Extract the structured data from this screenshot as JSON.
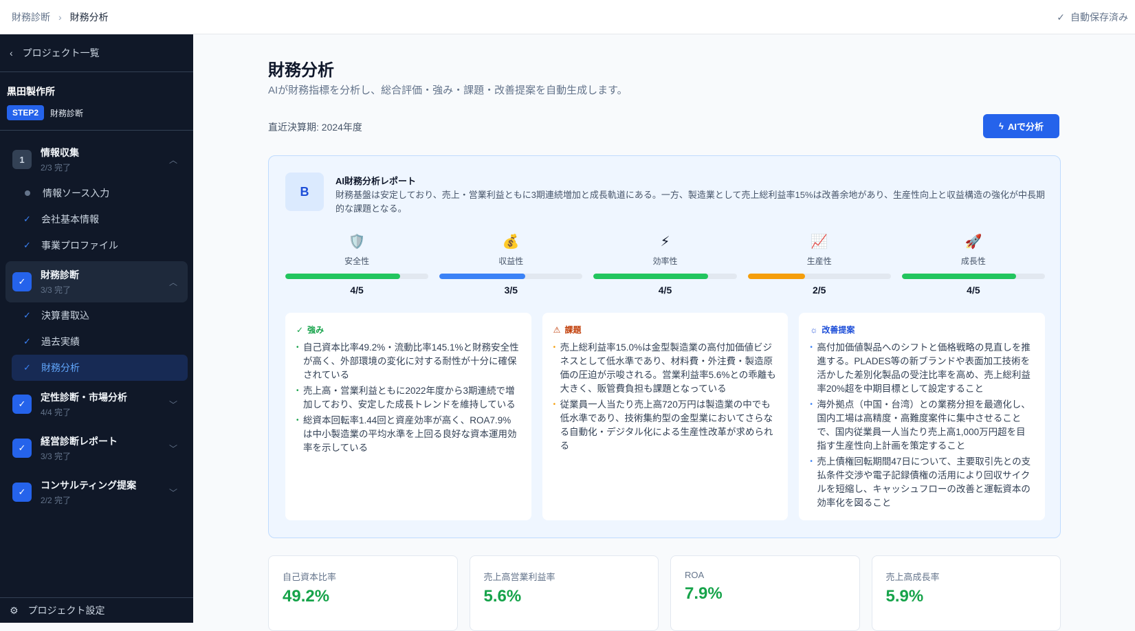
{
  "header": {
    "breadcrumb": [
      "財務診断",
      "財務分析"
    ],
    "autosave": "自動保存済み"
  },
  "sidebar": {
    "back": "プロジェクト一覧",
    "project_name": "黒田製作所",
    "step_badge": "STEP2",
    "step_label": "財務診断",
    "groups": [
      {
        "num": "1",
        "title": "情報収集",
        "progress": "2/3 完了",
        "state": "in-progress",
        "expanded": true,
        "items": [
          {
            "label": "情報ソース入力",
            "done": false
          },
          {
            "label": "会社基本情報",
            "done": true
          },
          {
            "label": "事業プロファイル",
            "done": true
          }
        ]
      },
      {
        "title": "財務診断",
        "progress": "3/3 完了",
        "state": "done",
        "expanded": true,
        "items": [
          {
            "label": "決算書取込",
            "done": true
          },
          {
            "label": "過去実績",
            "done": true
          },
          {
            "label": "財務分析",
            "done": true,
            "current": true
          }
        ]
      },
      {
        "title": "定性診断・市場分析",
        "progress": "4/4 完了",
        "state": "done",
        "expanded": false
      },
      {
        "title": "経営診断レポート",
        "progress": "3/3 完了",
        "state": "done",
        "expanded": false
      },
      {
        "title": "コンサルティング提案",
        "progress": "2/2 完了",
        "state": "done",
        "expanded": false
      }
    ],
    "settings": "プロジェクト設定"
  },
  "main": {
    "title": "財務分析",
    "description": "AIが財務指標を分析し、総合評価・強み・課題・改善提案を自動生成します。",
    "period": "直近決算期: 2024年度",
    "ai_button": "AIで分析",
    "report": {
      "grade": "B",
      "title": "AI財務分析レポート",
      "summary": "財務基盤は安定しており、売上・営業利益ともに3期連続増加と成長軌道にある。一方、製造業として売上総利益率15%は改善余地があり、生産性向上と収益構造の強化が中長期的な課題となる。",
      "scores": [
        {
          "icon": "🛡️",
          "label": "安全性",
          "value": "4/5",
          "fraction": 0.8,
          "color": "#22c55e"
        },
        {
          "icon": "💰",
          "label": "収益性",
          "value": "3/5",
          "fraction": 0.6,
          "color": "#3b82f6"
        },
        {
          "icon": "⚡",
          "label": "効率性",
          "value": "4/5",
          "fraction": 0.8,
          "color": "#22c55e"
        },
        {
          "icon": "📈",
          "label": "生産性",
          "value": "2/5",
          "fraction": 0.4,
          "color": "#f59e0b"
        },
        {
          "icon": "🚀",
          "label": "成長性",
          "value": "4/5",
          "fraction": 0.8,
          "color": "#22c55e"
        }
      ],
      "strengths": {
        "title": "強み",
        "color": "#16a34a",
        "items": [
          "自己資本比率49.2%・流動比率145.1%と財務安全性が高く、外部環境の変化に対する耐性が十分に確保されている",
          "売上高・営業利益ともに2022年度から3期連続で増加しており、安定した成長トレンドを維持している",
          "総資本回転率1.44回と資産効率が高く、ROA7.9%は中小製造業の平均水準を上回る良好な資本運用効率を示している"
        ]
      },
      "issues": {
        "title": "課題",
        "color": "#c2410c",
        "items": [
          "売上総利益率15.0%は金型製造業の高付加価値ビジネスとして低水準であり、材料費・外注費・製造原価の圧迫が示唆される。営業利益率5.6%との乖離も大きく、販管費負担も課題となっている",
          "従業員一人当たり売上高720万円は製造業の中でも低水準であり、技術集約型の金型業においてさらなる自動化・デジタル化による生産性改革が求められる"
        ]
      },
      "proposals": {
        "title": "改善提案",
        "color": "#1d4ed8",
        "items": [
          "高付加価値製品へのシフトと価格戦略の見直しを推進する。PLADES等の新ブランドや表面加工技術を活かした差別化製品の受注比率を高め、売上総利益率20%超を中期目標として設定すること",
          "海外拠点（中国・台湾）との業務分担を最適化し、国内工場は高精度・高難度案件に集中させることで、国内従業員一人当たり売上高1,000万円超を目指す生産性向上計画を策定すること",
          "売上債権回転期間47日について、主要取引先との支払条件交渉や電子記録債権の活用により回収サイクルを短縮し、キャッシュフローの改善と運転資本の効率化を図ること"
        ]
      }
    },
    "metrics": [
      {
        "label": "自己資本比率",
        "value": "49.2%"
      },
      {
        "label": "売上高営業利益率",
        "value": "5.6%"
      },
      {
        "label": "ROA",
        "value": "7.9%"
      },
      {
        "label": "売上高成長率",
        "value": "5.9%"
      }
    ]
  }
}
